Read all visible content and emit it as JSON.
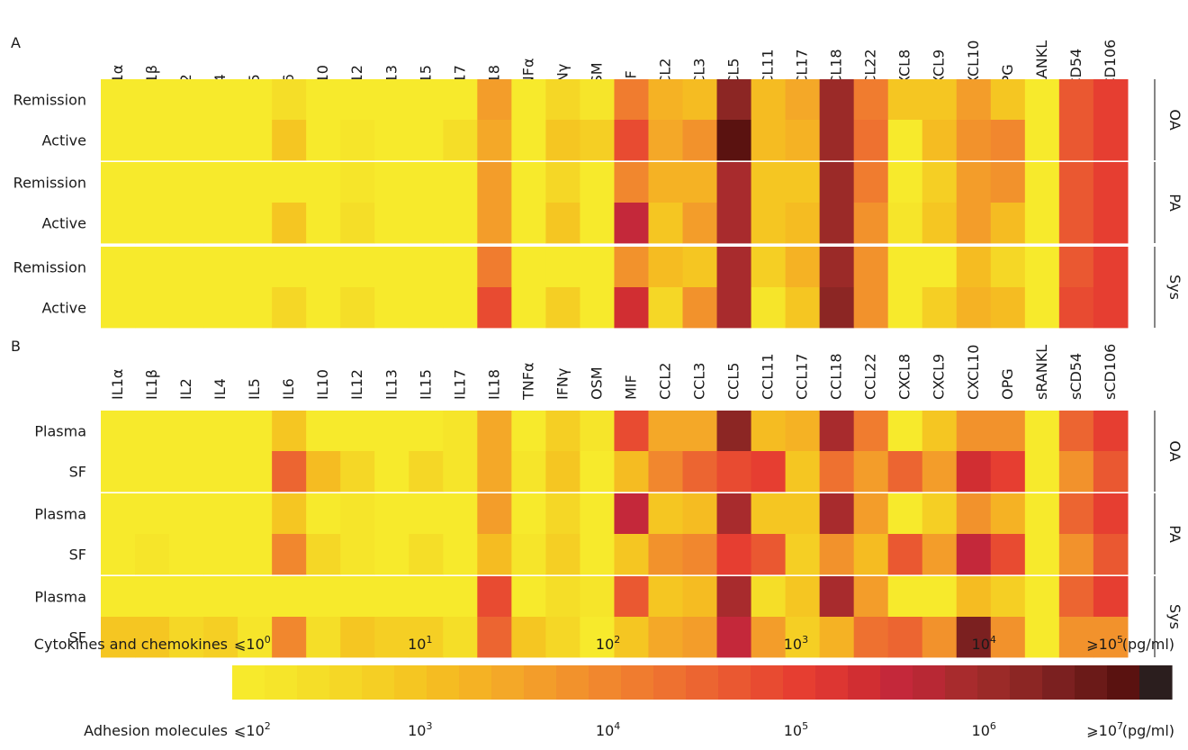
{
  "chart_data": [
    {
      "type": "heatmap",
      "panel_label": "A",
      "columns": [
        "IL1α",
        "IL1β",
        "IL2",
        "IL4",
        "IL5",
        "IL6",
        "IL10",
        "IL12",
        "IL13",
        "IL15",
        "IL17",
        "IL18",
        "TNFα",
        "IFNγ",
        "OSM",
        "MIF",
        "CCL2",
        "CCL3",
        "CCL5",
        "CCL11",
        "CCL17",
        "CCL18",
        "CCL22",
        "CXCL8",
        "CXCL9",
        "CXCL10",
        "OPG",
        "sRANKL",
        "sCD54",
        "sCD106"
      ],
      "groups": [
        {
          "name": "OA",
          "rows": [
            {
              "label": "Remission",
              "values": [
                0,
                0,
                0,
                0,
                0,
                2,
                0,
                0,
                0,
                0,
                0,
                9,
                0,
                3,
                1,
                12,
                7,
                6,
                24,
                6,
                8,
                23,
                12,
                5,
                5,
                9,
                5,
                0,
                15,
                17
              ]
            },
            {
              "label": "Active",
              "values": [
                0,
                0,
                0,
                0,
                0,
                5,
                0,
                1,
                0,
                0,
                2,
                8,
                0,
                5,
                4,
                16,
                8,
                10,
                27,
                6,
                7,
                23,
                13,
                0,
                6,
                10,
                11,
                0,
                15,
                17
              ]
            }
          ]
        },
        {
          "name": "PA",
          "rows": [
            {
              "label": "Remission",
              "values": [
                0,
                0,
                0,
                0,
                0,
                0,
                0,
                1,
                0,
                0,
                0,
                9,
                0,
                3,
                0,
                11,
                7,
                7,
                22,
                5,
                5,
                23,
                12,
                0,
                4,
                9,
                10,
                0,
                15,
                17
              ]
            },
            {
              "label": "Active",
              "values": [
                0,
                0,
                0,
                0,
                0,
                5,
                0,
                2,
                0,
                0,
                0,
                9,
                0,
                5,
                0,
                20,
                5,
                9,
                22,
                5,
                6,
                23,
                10,
                1,
                5,
                9,
                6,
                0,
                15,
                17
              ]
            }
          ]
        },
        {
          "name": "Sys",
          "rows": [
            {
              "label": "Remission",
              "values": [
                0,
                0,
                0,
                0,
                0,
                0,
                0,
                0,
                0,
                0,
                0,
                12,
                0,
                0,
                0,
                10,
                6,
                5,
                22,
                4,
                7,
                23,
                10,
                0,
                0,
                6,
                3,
                0,
                15,
                17
              ]
            },
            {
              "label": "Active",
              "values": [
                0,
                0,
                0,
                0,
                0,
                3,
                0,
                2,
                0,
                0,
                0,
                16,
                0,
                4,
                0,
                19,
                3,
                10,
                22,
                1,
                5,
                24,
                10,
                0,
                4,
                7,
                6,
                0,
                16,
                17
              ]
            }
          ]
        }
      ]
    },
    {
      "type": "heatmap",
      "panel_label": "B",
      "columns": [
        "IL1α",
        "IL1β",
        "IL2",
        "IL4",
        "IL5",
        "IL6",
        "IL10",
        "IL12",
        "IL13",
        "IL15",
        "IL17",
        "IL18",
        "TNFα",
        "IFNγ",
        "OSM",
        "MIF",
        "CCL2",
        "CCL3",
        "CCL5",
        "CCL11",
        "CCL17",
        "CCL18",
        "CCL22",
        "CXCL8",
        "CXCL9",
        "CXCL10",
        "OPG",
        "sRANKL",
        "sCD54",
        "sCD106"
      ],
      "groups": [
        {
          "name": "OA",
          "rows": [
            {
              "label": "Plasma",
              "values": [
                0,
                0,
                0,
                0,
                0,
                5,
                0,
                0,
                0,
                0,
                1,
                8,
                0,
                4,
                1,
                16,
                8,
                8,
                24,
                6,
                7,
                22,
                12,
                0,
                5,
                10,
                10,
                0,
                14,
                17
              ]
            },
            {
              "label": "SF",
              "values": [
                0,
                0,
                0,
                0,
                0,
                14,
                6,
                3,
                0,
                3,
                1,
                8,
                1,
                5,
                0,
                6,
                11,
                14,
                16,
                17,
                5,
                13,
                9,
                14,
                9,
                19,
                17,
                0,
                10,
                15
              ]
            }
          ]
        },
        {
          "name": "PA",
          "rows": [
            {
              "label": "Plasma",
              "values": [
                0,
                0,
                0,
                0,
                0,
                5,
                0,
                1,
                0,
                0,
                0,
                9,
                0,
                3,
                0,
                20,
                5,
                6,
                22,
                5,
                5,
                22,
                9,
                0,
                4,
                10,
                7,
                0,
                14,
                17
              ]
            },
            {
              "label": "SF",
              "values": [
                0,
                1,
                0,
                0,
                0,
                11,
                3,
                1,
                0,
                2,
                0,
                6,
                1,
                4,
                0,
                5,
                10,
                11,
                17,
                15,
                4,
                10,
                6,
                15,
                9,
                20,
                16,
                0,
                10,
                15
              ]
            }
          ]
        },
        {
          "name": "Sys",
          "rows": [
            {
              "label": "Plasma",
              "values": [
                0,
                0,
                0,
                0,
                0,
                0,
                0,
                0,
                0,
                0,
                0,
                16,
                0,
                2,
                1,
                15,
                5,
                6,
                22,
                2,
                5,
                22,
                9,
                0,
                0,
                6,
                4,
                0,
                14,
                17
              ]
            },
            {
              "label": "SF",
              "values": [
                5,
                5,
                3,
                4,
                1,
                11,
                2,
                5,
                4,
                4,
                2,
                14,
                5,
                3,
                0,
                5,
                8,
                9,
                20,
                9,
                4,
                7,
                13,
                14,
                10,
                25,
                10,
                0,
                10,
                10
              ]
            }
          ]
        }
      ]
    }
  ],
  "scale": {
    "steps": 29,
    "colors": [
      "#f7ea2c",
      "#f6e52a",
      "#f5de28",
      "#f5d726",
      "#f5cf24",
      "#f5c622",
      "#f5bc22",
      "#f5b224",
      "#f4a828",
      "#f39d2a",
      "#f2922c",
      "#f1872e",
      "#f07c2f",
      "#ee7130",
      "#ec6531",
      "#ea5831",
      "#e84b31",
      "#e63e31",
      "#dd3632",
      "#d12e32",
      "#c4283a",
      "#b82834",
      "#a82b2d",
      "#9b2a28",
      "#8c2624",
      "#7b2020",
      "#6b1a18",
      "#5a1210",
      "#2b1e1e"
    ],
    "cytokines_label": "Cytokines and chemokines",
    "adhesion_label": "Adhesion molecules",
    "unit": "(pg/ml)",
    "cytokine_ticks": [
      {
        "prefix": "⩽10",
        "sup": "0",
        "step": 0
      },
      {
        "prefix": "10",
        "sup": "1",
        "step": 5.8
      },
      {
        "prefix": "10",
        "sup": "2",
        "step": 11.6
      },
      {
        "prefix": "10",
        "sup": "3",
        "step": 17.4
      },
      {
        "prefix": "10",
        "sup": "4",
        "step": 23.2
      },
      {
        "prefix": "⩾10",
        "sup": "5",
        "step": 29
      }
    ],
    "adhesion_ticks": [
      {
        "prefix": "⩽10",
        "sup": "2",
        "step": 0
      },
      {
        "prefix": "10",
        "sup": "3",
        "step": 5.8
      },
      {
        "prefix": "10",
        "sup": "4",
        "step": 11.6
      },
      {
        "prefix": "10",
        "sup": "5",
        "step": 17.4
      },
      {
        "prefix": "10",
        "sup": "6",
        "step": 23.2
      },
      {
        "prefix": "⩾10",
        "sup": "7",
        "step": 29
      }
    ]
  }
}
